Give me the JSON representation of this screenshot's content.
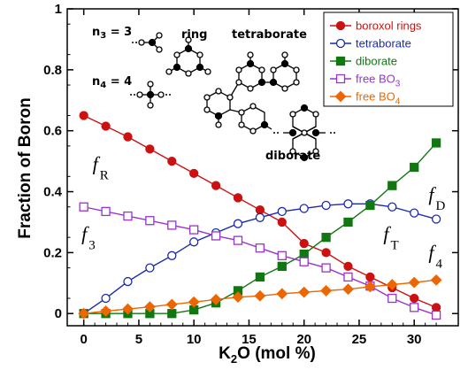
{
  "chart_data": {
    "type": "line",
    "xlabel": "K",
    "xlabel_sub": "2",
    "xlabel_rest": "O (mol %)",
    "ylabel": "Fraction of Boron",
    "xlim": [
      -1.5,
      34
    ],
    "ylim": [
      -0.04,
      1.0
    ],
    "xticks": [
      0,
      5,
      10,
      15,
      20,
      25,
      30
    ],
    "yticks": [
      0,
      0.2,
      0.4,
      0.6,
      0.8,
      1
    ],
    "ytick_labels": [
      "0",
      "0.2",
      "0.4",
      "0.6",
      "0.8",
      "1"
    ],
    "grid": false,
    "legend_position": "top-right",
    "x": [
      0,
      2,
      4,
      6,
      8,
      10,
      12,
      14,
      16,
      18,
      20,
      22,
      24,
      26,
      28,
      30,
      32
    ],
    "series": [
      {
        "name": "boroxol rings",
        "name_sub": "",
        "color": "#cc1111",
        "marker": "circle-filled",
        "values": [
          0.65,
          0.615,
          0.58,
          0.54,
          0.5,
          0.46,
          0.42,
          0.38,
          0.34,
          0.3,
          0.23,
          0.2,
          0.155,
          0.12,
          0.085,
          0.05,
          0.02
        ]
      },
      {
        "name": "tetraborate",
        "name_sub": "",
        "color": "#1a2aaa",
        "marker": "circle-open",
        "values": [
          0.0,
          0.05,
          0.105,
          0.15,
          0.19,
          0.235,
          0.265,
          0.295,
          0.315,
          0.335,
          0.345,
          0.355,
          0.36,
          0.36,
          0.35,
          0.33,
          0.31
        ]
      },
      {
        "name": "diborate",
        "name_sub": "",
        "color": "#117711",
        "marker": "square-filled",
        "values": [
          0.0,
          0.0,
          0.0,
          0.0,
          0.0,
          0.012,
          0.035,
          0.075,
          0.12,
          0.155,
          0.195,
          0.25,
          0.3,
          0.355,
          0.42,
          0.48,
          0.56
        ]
      },
      {
        "name": "free BO",
        "name_sub": "3",
        "color": "#9933cc",
        "marker": "square-open",
        "values": [
          0.35,
          0.335,
          0.32,
          0.305,
          0.29,
          0.275,
          0.255,
          0.24,
          0.215,
          0.19,
          0.17,
          0.15,
          0.12,
          0.09,
          0.05,
          0.02,
          -0.005
        ]
      },
      {
        "name": "free BO",
        "name_sub": "4",
        "color": "#ee6600",
        "marker": "diamond-filled",
        "values": [
          0.0,
          0.008,
          0.015,
          0.022,
          0.03,
          0.038,
          0.046,
          0.054,
          0.058,
          0.065,
          0.07,
          0.075,
          0.08,
          0.088,
          0.095,
          0.102,
          0.11
        ]
      }
    ],
    "curve_labels": [
      {
        "main": "f",
        "sub": "R",
        "x": 0.8,
        "y": 0.47
      },
      {
        "main": "f",
        "sub": "3",
        "x": -0.2,
        "y": 0.24
      },
      {
        "main": "f",
        "sub": "D",
        "x": 31.3,
        "y": 0.37
      },
      {
        "main": "f",
        "sub": "T",
        "x": 27.2,
        "y": 0.24
      },
      {
        "main": "f",
        "sub": "4",
        "x": 31.3,
        "y": 0.18
      }
    ],
    "annotations": {
      "n3": "n",
      "n3_sub": "3",
      "n3_value": " = 3",
      "n4": "n",
      "n4_sub": "4",
      "n4_value": " = 4",
      "ring": "ring",
      "tetraborate": "tetraborate",
      "diborate": "diborate"
    }
  }
}
